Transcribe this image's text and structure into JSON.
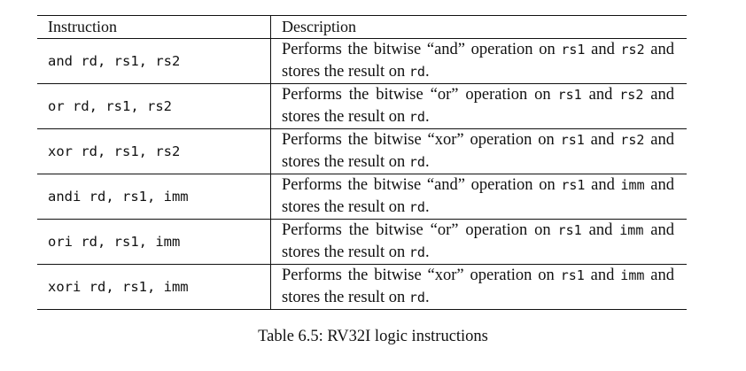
{
  "table": {
    "headers": {
      "instruction": "Instruction",
      "description": "Description"
    },
    "rows": [
      {
        "instruction": "and rd, rs1, rs2",
        "description": [
          {
            "t": "Performs the bitwise “and” operation on "
          },
          {
            "t": "rs1",
            "code": true
          },
          {
            "t": " and "
          },
          {
            "t": "rs2",
            "code": true
          },
          {
            "t": " and stores the result on "
          },
          {
            "t": "rd",
            "code": true
          },
          {
            "t": "."
          }
        ]
      },
      {
        "instruction": "or rd, rs1, rs2",
        "description": [
          {
            "t": "Performs the bitwise “or” operation on "
          },
          {
            "t": "rs1",
            "code": true
          },
          {
            "t": " and "
          },
          {
            "t": "rs2",
            "code": true
          },
          {
            "t": " and stores the result on "
          },
          {
            "t": "rd",
            "code": true
          },
          {
            "t": "."
          }
        ]
      },
      {
        "instruction": "xor rd, rs1, rs2",
        "description": [
          {
            "t": "Performs the bitwise “xor” operation on "
          },
          {
            "t": "rs1",
            "code": true
          },
          {
            "t": " and "
          },
          {
            "t": "rs2",
            "code": true
          },
          {
            "t": " and stores the result on "
          },
          {
            "t": "rd",
            "code": true
          },
          {
            "t": "."
          }
        ]
      },
      {
        "instruction": "andi rd, rs1, imm",
        "description": [
          {
            "t": "Performs the bitwise “and” operation on "
          },
          {
            "t": "rs1",
            "code": true
          },
          {
            "t": " and "
          },
          {
            "t": "imm",
            "code": true
          },
          {
            "t": " and stores the result on "
          },
          {
            "t": "rd",
            "code": true
          },
          {
            "t": "."
          }
        ]
      },
      {
        "instruction": "ori rd, rs1, imm",
        "description": [
          {
            "t": "Performs the bitwise “or” operation on "
          },
          {
            "t": "rs1",
            "code": true
          },
          {
            "t": " and "
          },
          {
            "t": "imm",
            "code": true
          },
          {
            "t": " and stores the result on "
          },
          {
            "t": "rd",
            "code": true
          },
          {
            "t": "."
          }
        ]
      },
      {
        "instruction": "xori rd, rs1, imm",
        "description": [
          {
            "t": "Performs the bitwise “xor” operation on "
          },
          {
            "t": "rs1",
            "code": true
          },
          {
            "t": " and "
          },
          {
            "t": "imm",
            "code": true
          },
          {
            "t": " and stores the result on "
          },
          {
            "t": "rd",
            "code": true
          },
          {
            "t": "."
          }
        ]
      }
    ]
  },
  "caption": "Table 6.5: RV32I logic instructions"
}
